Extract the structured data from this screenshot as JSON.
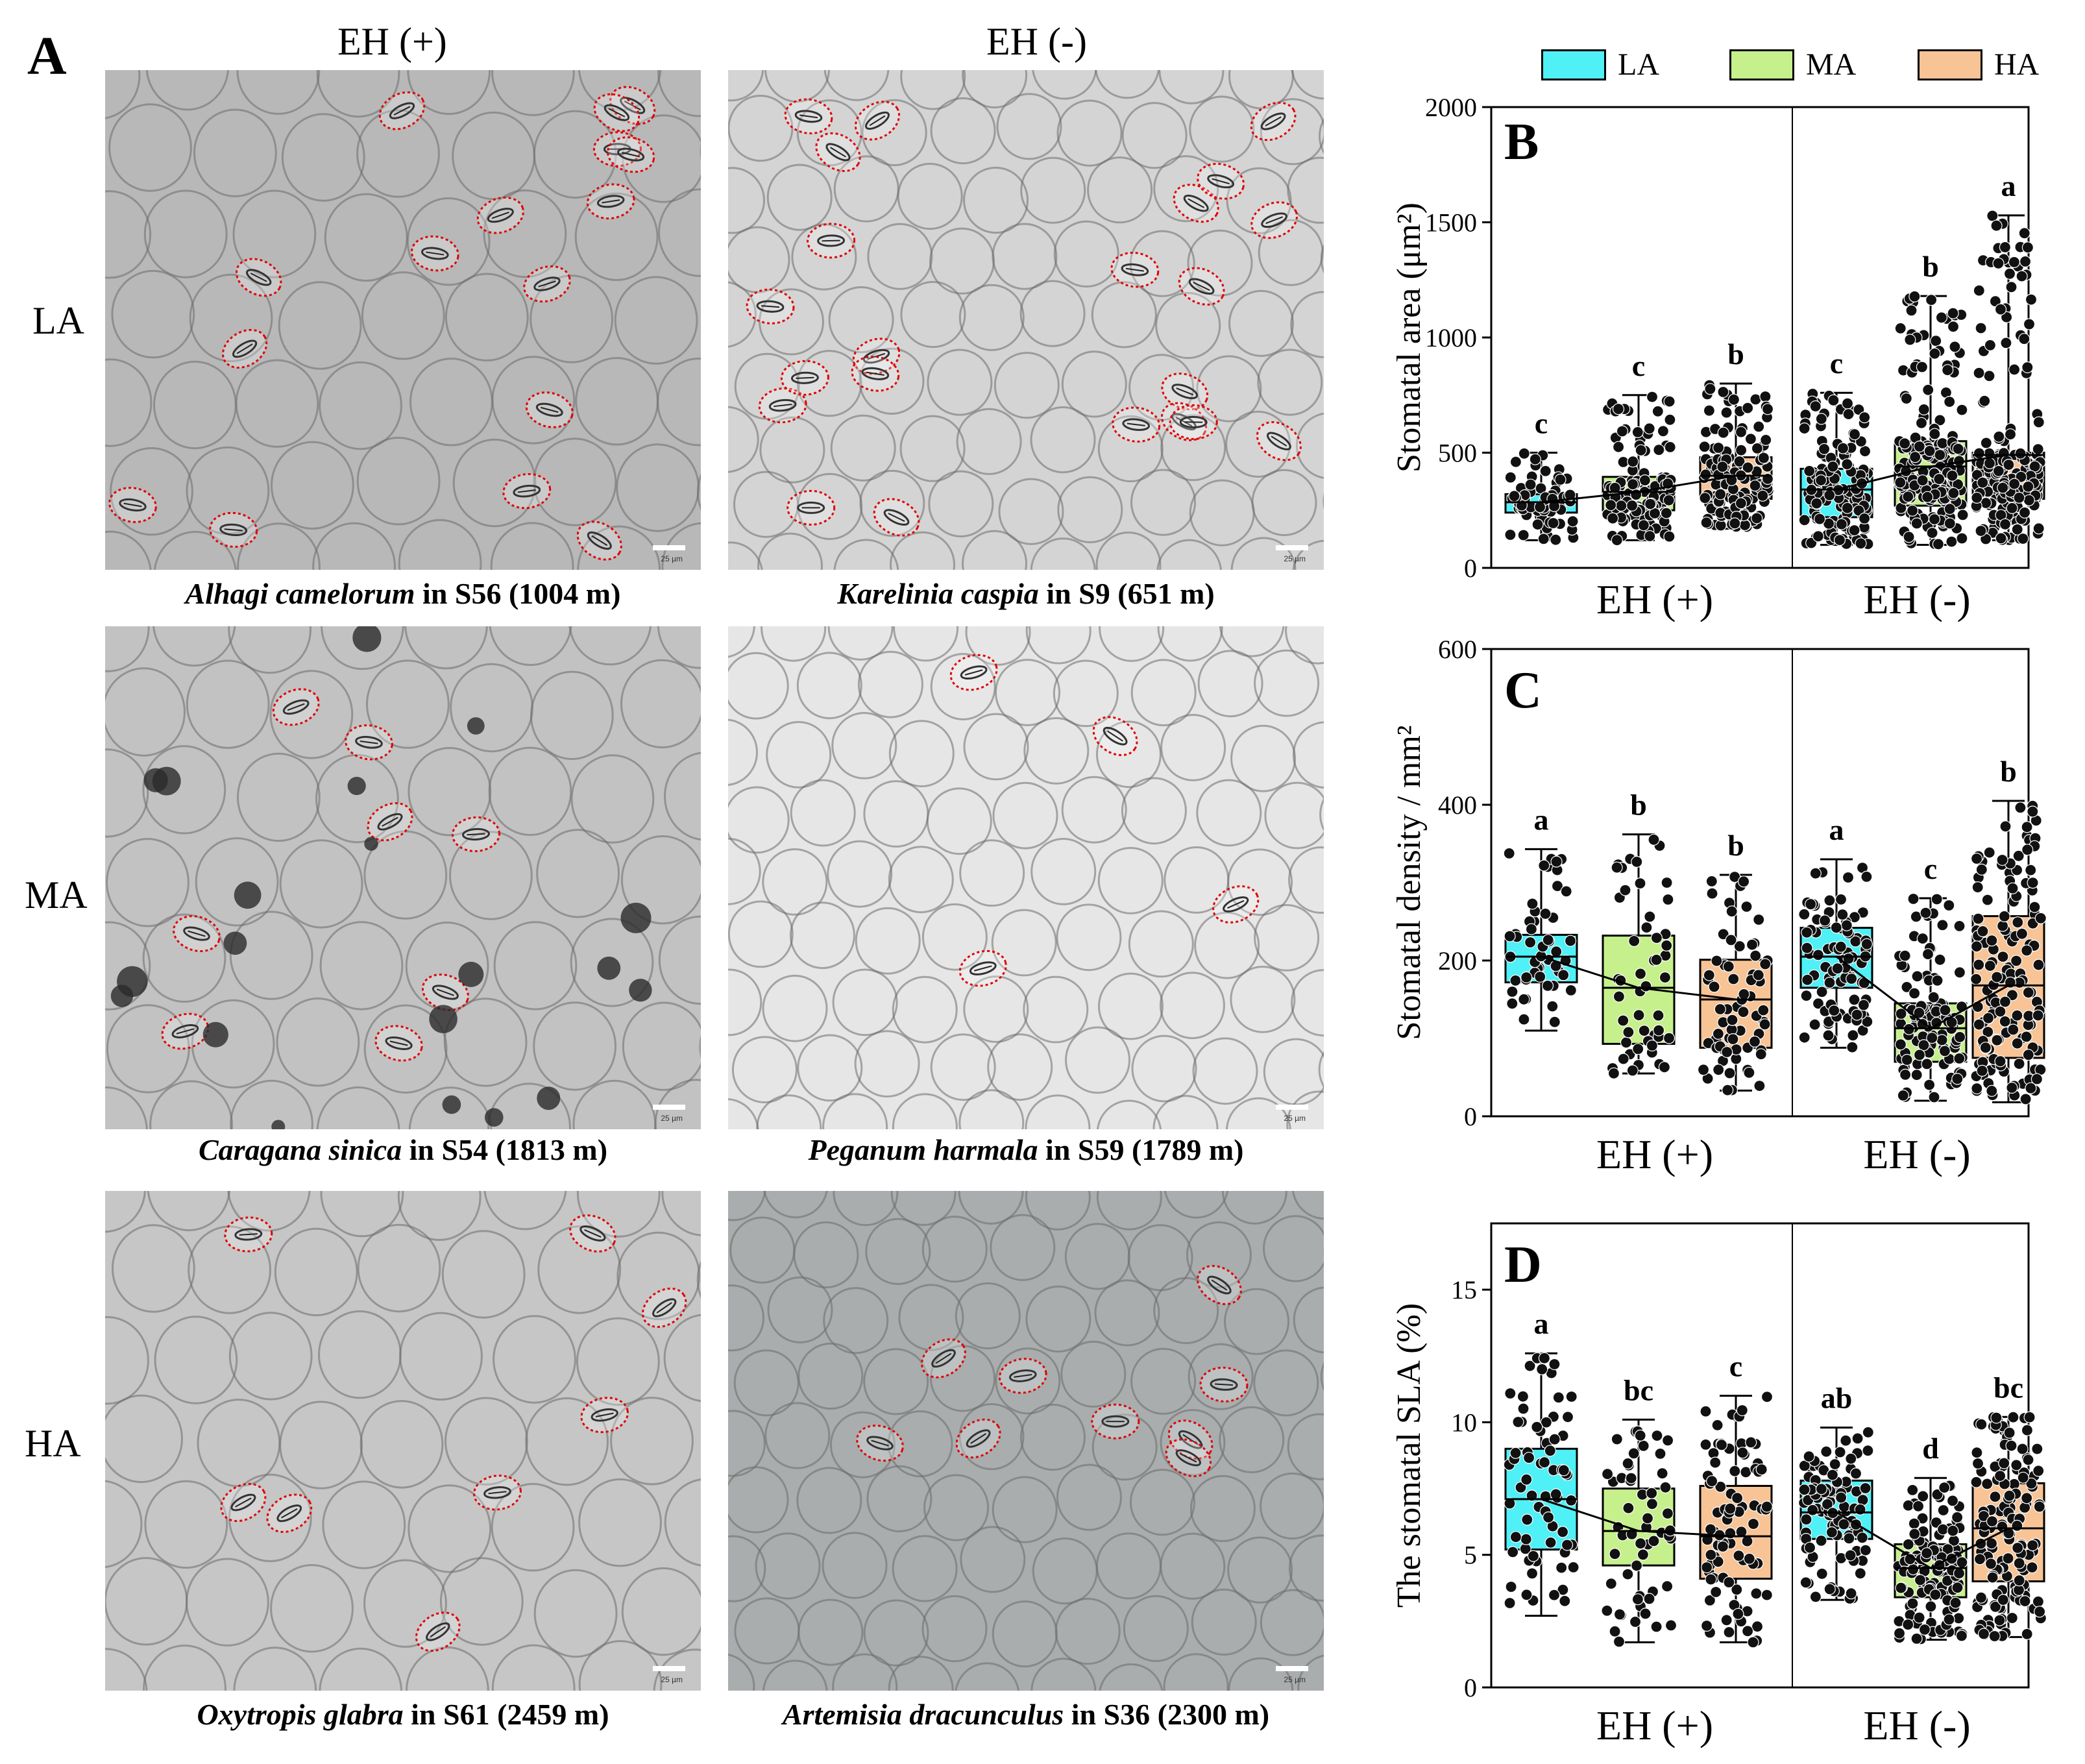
{
  "figure": {
    "panel_a_letter": "A",
    "columns": [
      "EH (+)",
      "EH (-)"
    ],
    "rows": [
      "LA",
      "MA",
      "HA"
    ],
    "micrographs": [
      {
        "species": "Alhagi camelorum",
        "rest": " in S56 (1004 m)",
        "tone": "#b8b8b8"
      },
      {
        "species": "Karelinia caspia",
        "rest": " in S9 (651 m)",
        "tone": "#d4d4d4"
      },
      {
        "species": "Caragana sinica",
        "rest": " in S54 (1813 m)",
        "tone": "#c2c2c2"
      },
      {
        "species": "Peganum harmala",
        "rest": " in S59 (1789 m)",
        "tone": "#e6e6e6"
      },
      {
        "species": "Oxytropis glabra",
        "rest": " in S61 (2459 m)",
        "tone": "#c6c6c6"
      },
      {
        "species": "Artemisia dracunculus",
        "rest": " in S36 (2300 m)",
        "tone": "#a9adae"
      }
    ],
    "scale_label": "25 µm",
    "outline_color": "#e00000"
  },
  "legend": [
    {
      "label": "LA",
      "color": "#4ff0f6"
    },
    {
      "label": "MA",
      "color": "#c6f08c"
    },
    {
      "label": "HA",
      "color": "#f8c496"
    }
  ],
  "chart_data": [
    {
      "type": "box",
      "panel": "B",
      "ylabel": "Stomatal area (μm²)",
      "ylim": [
        0,
        2000
      ],
      "yticks": [
        0,
        500,
        1000,
        1500,
        2000
      ],
      "groups": [
        "EH (+)",
        "EH (-)"
      ],
      "boxes": [
        {
          "group": "EH (+)",
          "series": "LA",
          "min": 120,
          "q1": 240,
          "median": 285,
          "q3": 320,
          "max": 500,
          "letter": "c",
          "n": 70
        },
        {
          "group": "EH (+)",
          "series": "MA",
          "min": 120,
          "q1": 250,
          "median": 330,
          "q3": 395,
          "max": 750,
          "letter": "c",
          "n": 120
        },
        {
          "group": "EH (+)",
          "series": "HA",
          "min": 170,
          "q1": 300,
          "median": 400,
          "q3": 480,
          "max": 800,
          "letter": "b",
          "n": 140
        },
        {
          "group": "EH (-)",
          "series": "LA",
          "min": 100,
          "q1": 220,
          "median": 340,
          "q3": 430,
          "max": 760,
          "letter": "c",
          "n": 140
        },
        {
          "group": "EH (-)",
          "series": "MA",
          "min": 100,
          "q1": 270,
          "median": 440,
          "q3": 550,
          "max": 1180,
          "letter": "b",
          "n": 200
        },
        {
          "group": "EH (-)",
          "series": "HA",
          "min": 120,
          "q1": 300,
          "median": 490,
          "q3": 500,
          "max": 1530,
          "letter": "a",
          "n": 200
        }
      ]
    },
    {
      "type": "box",
      "panel": "C",
      "ylabel": "Stomatal density / mm²",
      "ylim": [
        0,
        600
      ],
      "yticks": [
        0,
        200,
        400,
        600
      ],
      "groups": [
        "EH (+)",
        "EH (-)"
      ],
      "boxes": [
        {
          "group": "EH (+)",
          "series": "LA",
          "min": 110,
          "q1": 172,
          "median": 205,
          "q3": 233,
          "max": 343,
          "letter": "a",
          "n": 50
        },
        {
          "group": "EH (+)",
          "series": "MA",
          "min": 55,
          "q1": 93,
          "median": 165,
          "q3": 232,
          "max": 362,
          "letter": "b",
          "n": 50
        },
        {
          "group": "EH (+)",
          "series": "HA",
          "min": 33,
          "q1": 88,
          "median": 150,
          "q3": 201,
          "max": 310,
          "letter": "b",
          "n": 70
        },
        {
          "group": "EH (-)",
          "series": "LA",
          "min": 88,
          "q1": 165,
          "median": 205,
          "q3": 242,
          "max": 330,
          "letter": "a",
          "n": 90
        },
        {
          "group": "EH (-)",
          "series": "MA",
          "min": 20,
          "q1": 70,
          "median": 113,
          "q3": 145,
          "max": 280,
          "letter": "c",
          "n": 110
        },
        {
          "group": "EH (-)",
          "series": "HA",
          "min": 18,
          "q1": 75,
          "median": 168,
          "q3": 257,
          "max": 405,
          "letter": "b",
          "n": 150
        }
      ]
    },
    {
      "type": "box",
      "panel": "D",
      "ylabel": "The stomatal SLA (%)",
      "ylim": [
        0,
        17.5
      ],
      "yticks": [
        0,
        5,
        10,
        15
      ],
      "groups": [
        "EH (+)",
        "EH (-)"
      ],
      "boxes": [
        {
          "group": "EH (+)",
          "series": "LA",
          "min": 2.7,
          "q1": 5.2,
          "median": 7.1,
          "q3": 9.0,
          "max": 12.6,
          "letter": "a",
          "n": 70
        },
        {
          "group": "EH (+)",
          "series": "MA",
          "min": 1.7,
          "q1": 4.6,
          "median": 5.9,
          "q3": 7.5,
          "max": 10.1,
          "letter": "bc",
          "n": 55
        },
        {
          "group": "EH (+)",
          "series": "HA",
          "min": 1.7,
          "q1": 4.1,
          "median": 5.7,
          "q3": 7.6,
          "max": 11.0,
          "letter": "c",
          "n": 90
        },
        {
          "group": "EH (-)",
          "series": "LA",
          "min": 3.3,
          "q1": 5.6,
          "median": 6.6,
          "q3": 7.8,
          "max": 9.8,
          "letter": "ab",
          "n": 100
        },
        {
          "group": "EH (-)",
          "series": "MA",
          "min": 1.8,
          "q1": 3.4,
          "median": 4.5,
          "q3": 5.4,
          "max": 7.9,
          "letter": "d",
          "n": 130
        },
        {
          "group": "EH (-)",
          "series": "HA",
          "min": 1.9,
          "q1": 4.0,
          "median": 6.0,
          "q3": 7.7,
          "max": 10.2,
          "letter": "bc",
          "n": 150
        }
      ]
    }
  ]
}
